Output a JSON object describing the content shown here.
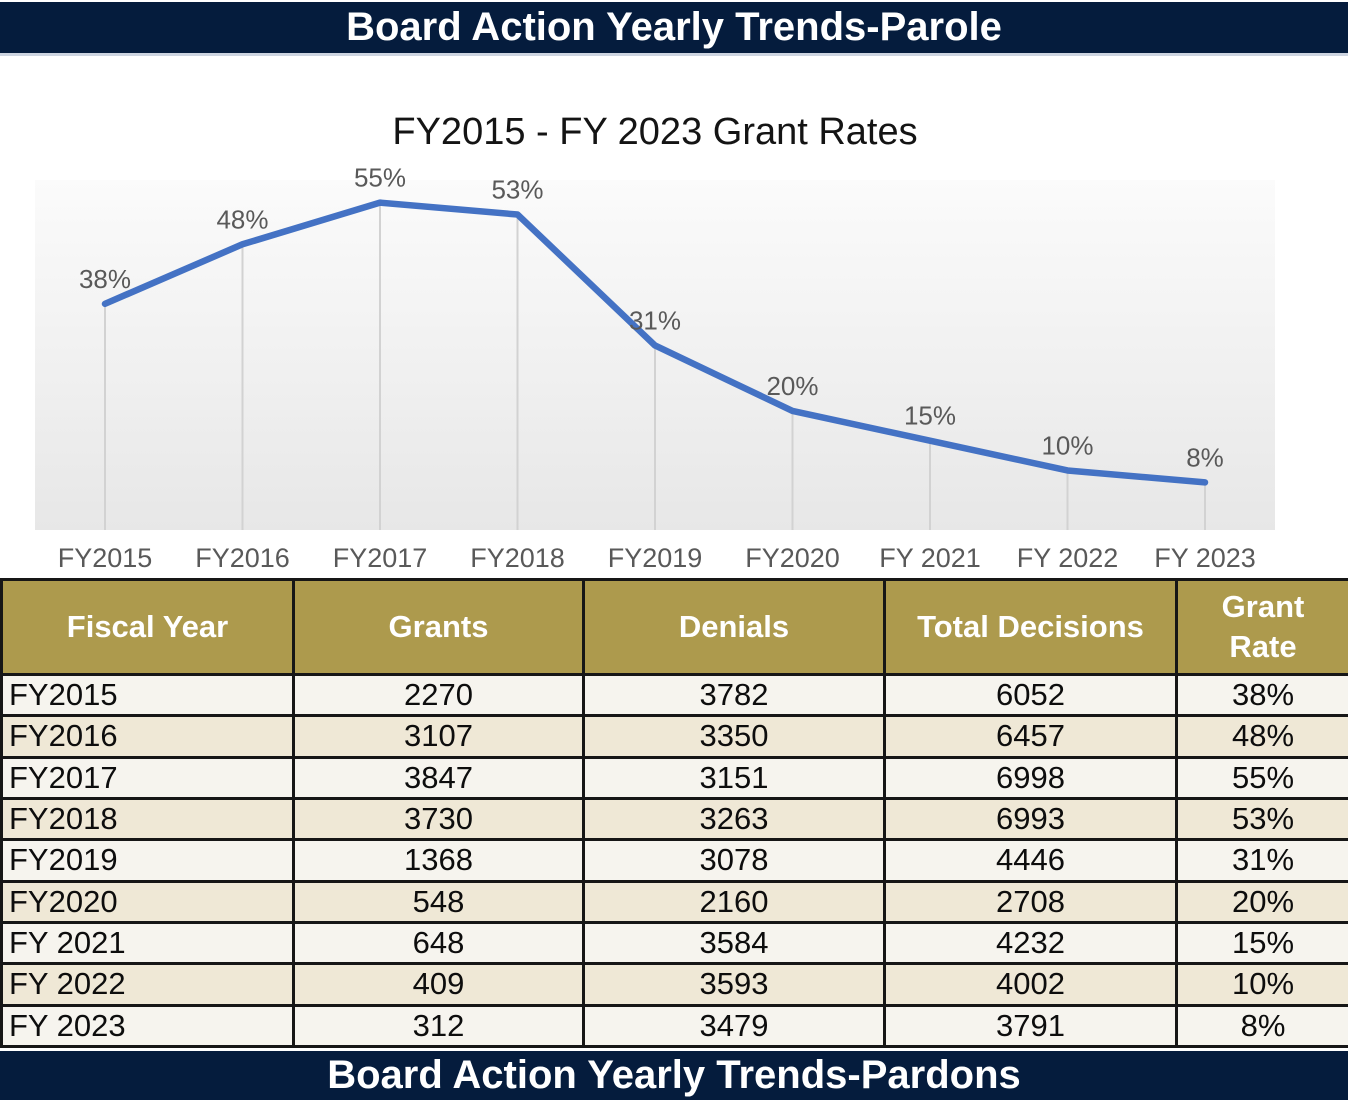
{
  "header": {
    "title": "Board Action Yearly Trends-Parole"
  },
  "footer": {
    "title": "Board Action Yearly Trends-Pardons"
  },
  "chart_data": {
    "type": "line",
    "title": "FY2015 - FY 2023 Grant Rates",
    "categories": [
      "FY2015",
      "FY2016",
      "FY2017",
      "FY2018",
      "FY2019",
      "FY2020",
      "FY 2021",
      "FY 2022",
      "FY 2023"
    ],
    "values": [
      38,
      48,
      55,
      53,
      31,
      20,
      15,
      10,
      8
    ],
    "point_labels": [
      "38%",
      "48%",
      "55%",
      "53%",
      "31%",
      "20%",
      "15%",
      "10%",
      "8%"
    ],
    "xlabel": "",
    "ylabel": "",
    "ylim": [
      0,
      58.8
    ],
    "grid": "vertical drop lines from each point to baseline",
    "legend": "none",
    "line_color": "#4472c4",
    "label_color": "#595959",
    "drop_line_color": "#d2d2d2"
  },
  "table": {
    "columns": [
      "Fiscal Year",
      "Grants",
      "Denials",
      "Total Decisions",
      "Grant Rate"
    ],
    "rows": [
      [
        "FY2015",
        "2270",
        "3782",
        "6052",
        "38%"
      ],
      [
        "FY2016",
        "3107",
        "3350",
        "6457",
        "48%"
      ],
      [
        "FY2017",
        "3847",
        "3151",
        "6998",
        "55%"
      ],
      [
        "FY2018",
        "3730",
        "3263",
        "6993",
        "53%"
      ],
      [
        "FY2019",
        "1368",
        "3078",
        "4446",
        "31%"
      ],
      [
        "FY2020",
        "548",
        "2160",
        "2708",
        "20%"
      ],
      [
        "FY 2021",
        "648",
        "3584",
        "4232",
        "15%"
      ],
      [
        "FY 2022",
        "409",
        "3593",
        "4002",
        "10%"
      ],
      [
        "FY 2023",
        "312",
        "3479",
        "3791",
        "8%"
      ]
    ]
  },
  "colors": {
    "navy_bar": "#051c3d",
    "bar_text": "#ffffff",
    "table_header_gold": "#ad9a4d",
    "row_light": "#f6f4ee",
    "row_beige": "#efe8d6",
    "table_border": "#161616",
    "chart_line_blue": "#4472c4",
    "chart_text_gray": "#595959",
    "plot_bg_top": "#fbfbfb",
    "plot_bg_bottom": "#e7e7e7"
  }
}
